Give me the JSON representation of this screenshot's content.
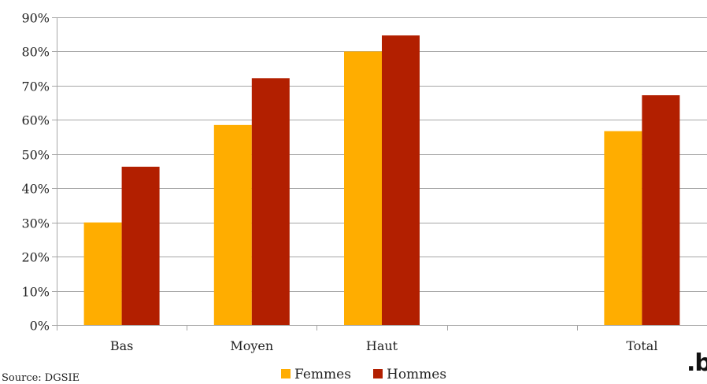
{
  "chart_data": {
    "type": "bar",
    "categories": [
      "Bas",
      "Moyen",
      "Haut",
      "",
      "Total"
    ],
    "series": [
      {
        "name": "Femmes",
        "values": [
          0.3,
          0.585,
          0.8,
          null,
          0.567
        ],
        "color": "#ffad00"
      },
      {
        "name": "Hommes",
        "values": [
          0.463,
          0.722,
          0.847,
          null,
          0.672
        ],
        "color": "#b21f00"
      }
    ],
    "ylim": [
      0,
      0.9
    ],
    "yticks": [
      "0%",
      "10%",
      "20%",
      "30%",
      "40%",
      "50%",
      "60%",
      "70%",
      "80%",
      "90%"
    ],
    "grid": true,
    "legend_position": "bottom",
    "title": "",
    "xlabel": "",
    "ylabel": ""
  },
  "source_text": "Source: DGSIE",
  "logo_text": ".be"
}
